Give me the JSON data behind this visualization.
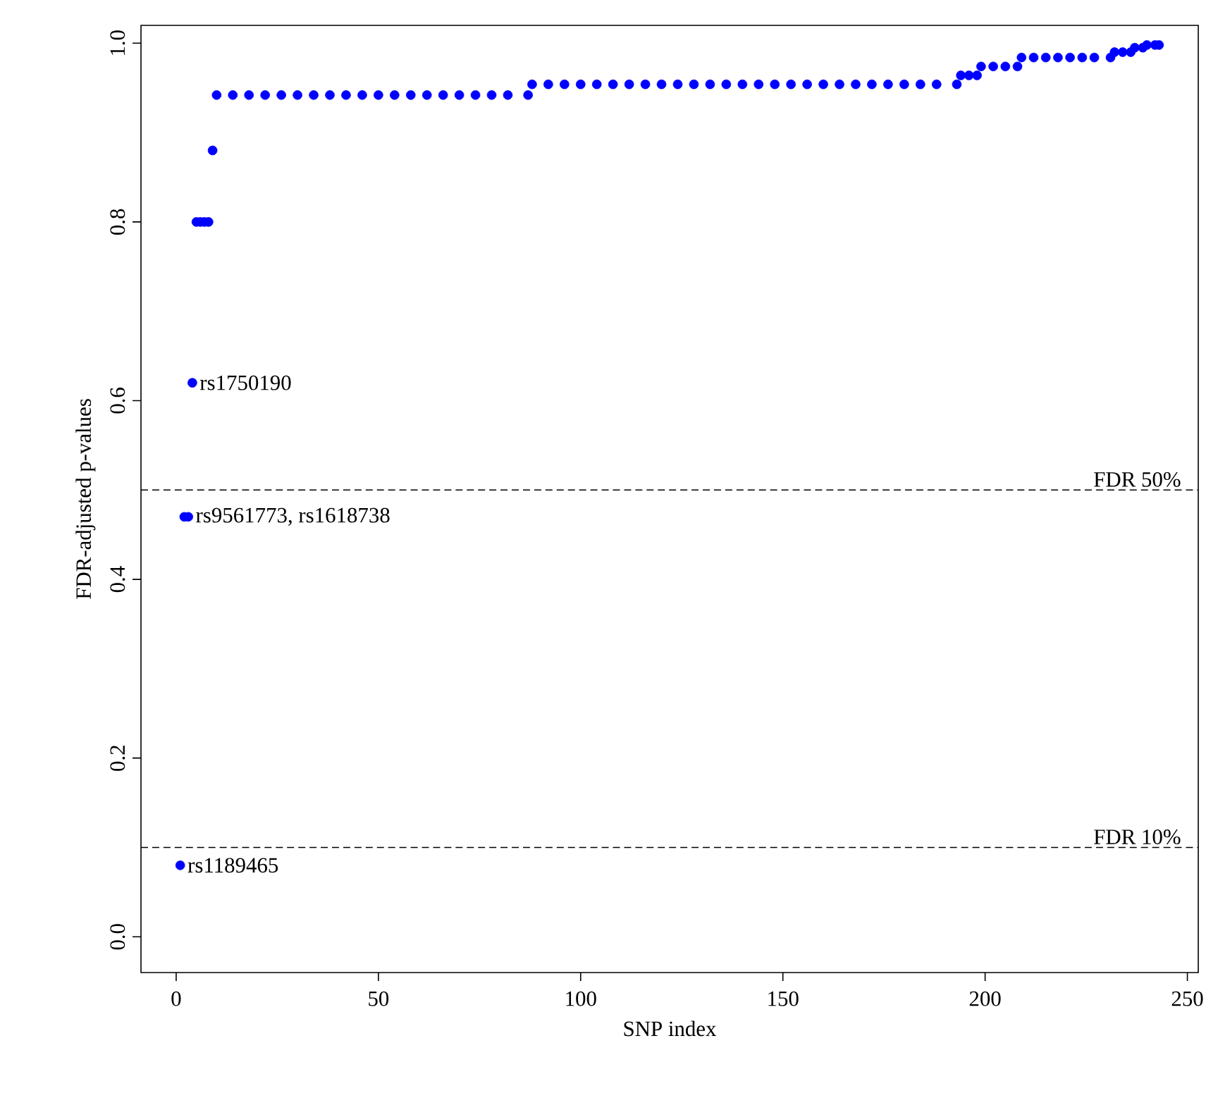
{
  "chart_data": {
    "type": "scatter",
    "xlabel": "SNP index",
    "ylabel": "FDR-adjusted p-values",
    "color": "#0000ff",
    "marker": "circle",
    "x": [
      1,
      2,
      3,
      4,
      5,
      6,
      7,
      8,
      9,
      10,
      14,
      18,
      22,
      26,
      30,
      34,
      38,
      42,
      46,
      50,
      54,
      58,
      62,
      66,
      70,
      74,
      78,
      82,
      87,
      88,
      92,
      96,
      100,
      104,
      108,
      112,
      116,
      120,
      124,
      128,
      132,
      136,
      140,
      144,
      148,
      152,
      156,
      160,
      164,
      168,
      172,
      176,
      180,
      184,
      188,
      193,
      194,
      196,
      198,
      199,
      202,
      205,
      208,
      209,
      212,
      215,
      218,
      221,
      224,
      227,
      231,
      232,
      234,
      236,
      237,
      239,
      240,
      242,
      243
    ],
    "values": [
      0.08,
      0.47,
      0.47,
      0.62,
      0.8,
      0.8,
      0.8,
      0.8,
      0.88,
      0.942,
      0.942,
      0.942,
      0.942,
      0.942,
      0.942,
      0.942,
      0.942,
      0.942,
      0.942,
      0.942,
      0.942,
      0.942,
      0.942,
      0.942,
      0.942,
      0.942,
      0.942,
      0.942,
      0.942,
      0.954,
      0.954,
      0.954,
      0.954,
      0.954,
      0.954,
      0.954,
      0.954,
      0.954,
      0.954,
      0.954,
      0.954,
      0.954,
      0.954,
      0.954,
      0.954,
      0.954,
      0.954,
      0.954,
      0.954,
      0.954,
      0.954,
      0.954,
      0.954,
      0.954,
      0.954,
      0.954,
      0.964,
      0.964,
      0.964,
      0.974,
      0.974,
      0.974,
      0.974,
      0.984,
      0.984,
      0.984,
      0.984,
      0.984,
      0.984,
      0.984,
      0.984,
      0.99,
      0.99,
      0.99,
      0.995,
      0.995,
      0.998,
      0.998,
      0.998
    ],
    "xlim": [
      -8.7,
      252.7
    ],
    "ylim": [
      -0.04,
      1.02
    ],
    "xticks": [
      0,
      50,
      100,
      150,
      200,
      250
    ],
    "yticks": [
      {
        "value": 0,
        "label": "0.0"
      },
      0.2,
      0.4,
      0.6,
      0.8,
      {
        "value": 1,
        "label": "1.0"
      }
    ],
    "ref_lines": [
      {
        "axis": "y",
        "value": 0.5,
        "label": "FDR 50%",
        "color": "#000000",
        "line_style": "dashed"
      },
      {
        "axis": "y",
        "value": 0.1,
        "label": "FDR 10%",
        "color": "#000000",
        "line_style": "dashed"
      }
    ],
    "annotations": [
      {
        "text": "rs1750190",
        "x": 4,
        "y": 0.62
      },
      {
        "text": "rs9561773, rs1618738",
        "x": 3,
        "y": 0.47
      },
      {
        "text": "rs1189465",
        "x": 1,
        "y": 0.08
      }
    ]
  }
}
